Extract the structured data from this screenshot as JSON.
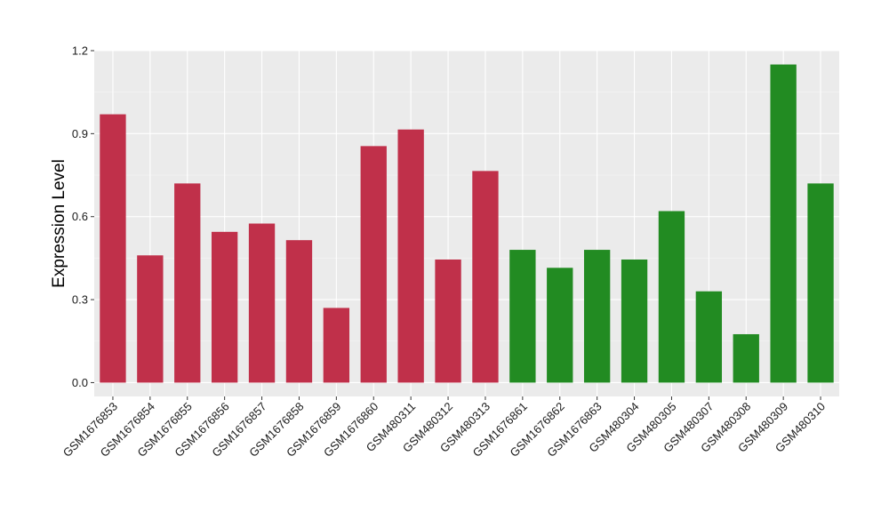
{
  "chart_data": {
    "type": "bar",
    "title": "",
    "xlabel": "",
    "ylabel": "Expression Level",
    "ylim": [
      -0.05,
      1.2
    ],
    "yticks": [
      0.0,
      0.3,
      0.6,
      0.9,
      1.2
    ],
    "ytick_labels": [
      "0.0",
      "0.3",
      "0.6",
      "0.9",
      "1.2"
    ],
    "grid": true,
    "legend": "none",
    "panel_background": "#ebebeb",
    "grid_color": "#ffffff",
    "group_colors": [
      "#c0304a",
      "#228b22"
    ],
    "categories": [
      "GSM1676853",
      "GSM1676854",
      "GSM1676855",
      "GSM1676856",
      "GSM1676857",
      "GSM1676858",
      "GSM1676859",
      "GSM1676860",
      "GSM480311",
      "GSM480312",
      "GSM480313",
      "GSM1676861",
      "GSM1676862",
      "GSM1676863",
      "GSM480304",
      "GSM480305",
      "GSM480307",
      "GSM480308",
      "GSM480309",
      "GSM480310"
    ],
    "values": [
      0.97,
      0.46,
      0.72,
      0.545,
      0.575,
      0.515,
      0.27,
      0.855,
      0.915,
      0.445,
      0.765,
      0.48,
      0.415,
      0.48,
      0.445,
      0.62,
      0.33,
      0.175,
      1.15,
      0.72
    ],
    "group": [
      0,
      0,
      0,
      0,
      0,
      0,
      0,
      0,
      0,
      0,
      0,
      1,
      1,
      1,
      1,
      1,
      1,
      1,
      1,
      1
    ]
  }
}
